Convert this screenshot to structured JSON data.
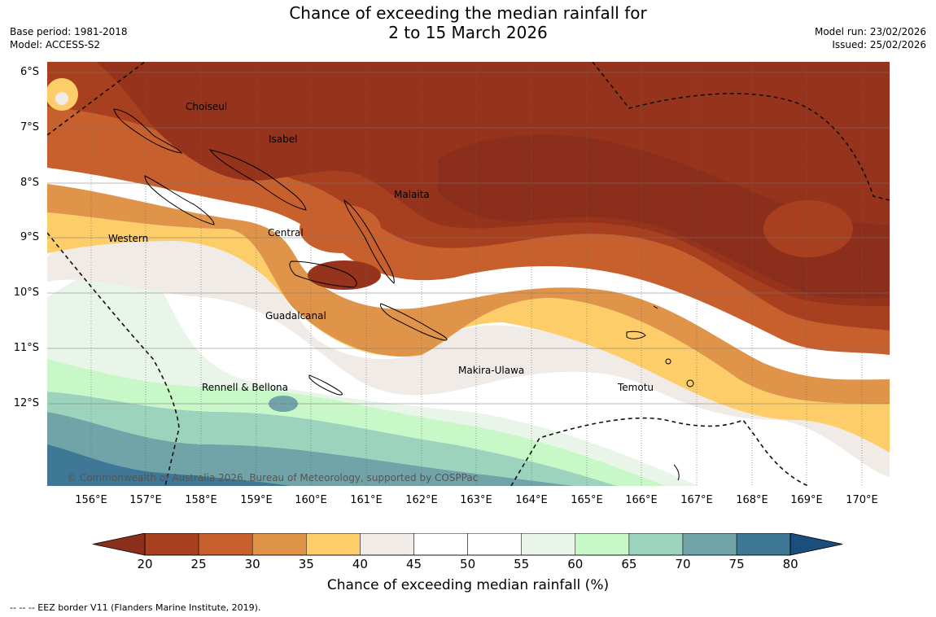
{
  "header": {
    "title_line1": "Chance of exceeding the median rainfall for",
    "title_line2": "2 to 15 March 2026",
    "base_period": "Base period: 1981-2018",
    "model": "Model: ACCESS-S2",
    "model_run": "Model run: 23/02/2026",
    "issued": "Issued: 25/02/2026"
  },
  "map": {
    "lat_labels": [
      "6°S",
      "7°S",
      "8°S",
      "9°S",
      "10°S",
      "11°S",
      "12°S"
    ],
    "lon_labels": [
      "156°E",
      "157°E",
      "158°E",
      "159°E",
      "160°E",
      "161°E",
      "162°E",
      "163°E",
      "164°E",
      "165°E",
      "166°E",
      "167°E",
      "168°E",
      "169°E",
      "170°E"
    ],
    "regions": [
      "Choiseul",
      "Isabel",
      "Malaita",
      "Central",
      "Western",
      "Guadalcanal",
      "Makira-Ulawa",
      "Temotu",
      "Rennell & Bellona"
    ],
    "copyright": "© Commonwealth of Australia 2026, Bureau of Meteorology, supported by COSPPac"
  },
  "legend": {
    "ticks": [
      "20",
      "25",
      "30",
      "35",
      "40",
      "45",
      "50",
      "55",
      "60",
      "65",
      "70",
      "75",
      "80"
    ],
    "colors": [
      "#8b2f1c",
      "#a8401f",
      "#c8602e",
      "#e0944a",
      "#fdcd6a",
      "#f0ebe6",
      "#ffffff",
      "#ffffff",
      "#e8f5e8",
      "#c8f7c8",
      "#9cd3bd",
      "#70a4a8",
      "#3e7896",
      "#1a4f7d"
    ],
    "title": "Chance of exceeding median rainfall (%)"
  },
  "footnote": "--  --  -- EEZ border V11 (Flanders Marine Institute, 2019)."
}
